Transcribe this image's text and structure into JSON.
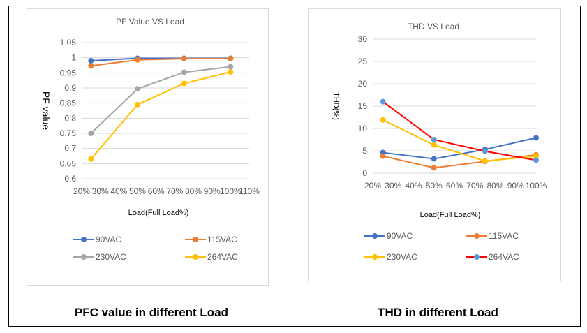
{
  "captions": {
    "left": "PFC value in different Load",
    "right": "THD in different Load"
  },
  "colors": {
    "90VAC": "#4472c4",
    "115VAC": "#ed7d31",
    "230VAC": "#a5a5a5",
    "264VAC_pfc": "#ffc000",
    "230VAC_thd": "#ffc000",
    "264VAC_thd_line": "#ff0000",
    "264VAC_thd_marker": "#5b9bd5",
    "grid": "#d9d9d9",
    "text": "#595959"
  },
  "chart_data": [
    {
      "type": "line",
      "title": "PF Value VS Load",
      "xlabel": "Load(Full Load%)",
      "ylabel": "PF value",
      "xlim": [
        20,
        110
      ],
      "ylim": [
        0.6,
        1.05
      ],
      "x_ticks": [
        "20%",
        "30%",
        "40%",
        "50%",
        "60%",
        "70%",
        "80%",
        "90%",
        "100%",
        "110%"
      ],
      "y_ticks": [
        "0.6",
        "0.65",
        "0.7",
        "0.75",
        "0.8",
        "0.85",
        "0.9",
        "0.95",
        "1",
        "1.05"
      ],
      "grid": "horizontal",
      "legend_position": "bottom",
      "series": [
        {
          "name": "90VAC",
          "x": [
            25,
            50,
            75,
            100
          ],
          "values": [
            0.99,
            0.998,
            0.998,
            0.998
          ]
        },
        {
          "name": "115VAC",
          "x": [
            25,
            50,
            75,
            100
          ],
          "values": [
            0.973,
            0.993,
            0.997,
            0.997
          ]
        },
        {
          "name": "230VAC",
          "x": [
            25,
            50,
            75,
            100
          ],
          "values": [
            0.75,
            0.897,
            0.952,
            0.97
          ]
        },
        {
          "name": "264VAC",
          "x": [
            25,
            50,
            75,
            100
          ],
          "values": [
            0.665,
            0.845,
            0.915,
            0.953
          ]
        }
      ]
    },
    {
      "type": "line",
      "title": "THD VS Load",
      "xlabel": "Load(Full Load%)",
      "ylabel": "THD(%)",
      "xlim": [
        20,
        100
      ],
      "ylim": [
        0,
        30
      ],
      "x_ticks": [
        "20%",
        "30%",
        "40%",
        "50%",
        "60%",
        "70%",
        "80%",
        "90%",
        "100%"
      ],
      "y_ticks": [
        "0",
        "5",
        "10",
        "15",
        "20",
        "25",
        "30"
      ],
      "grid": "horizontal",
      "legend_position": "bottom",
      "series": [
        {
          "name": "90VAC",
          "x": [
            25,
            50,
            75,
            100
          ],
          "values": [
            4.6,
            3.2,
            5.3,
            7.9
          ]
        },
        {
          "name": "115VAC",
          "x": [
            25,
            50,
            75,
            100
          ],
          "values": [
            3.8,
            1.2,
            2.6,
            4.1
          ]
        },
        {
          "name": "230VAC",
          "x": [
            25,
            50,
            75,
            100
          ],
          "values": [
            11.9,
            6.3,
            2.7,
            3.8
          ]
        },
        {
          "name": "264VAC",
          "x": [
            25,
            50,
            75,
            100
          ],
          "values": [
            16.0,
            7.5,
            4.9,
            2.9
          ]
        }
      ]
    }
  ]
}
